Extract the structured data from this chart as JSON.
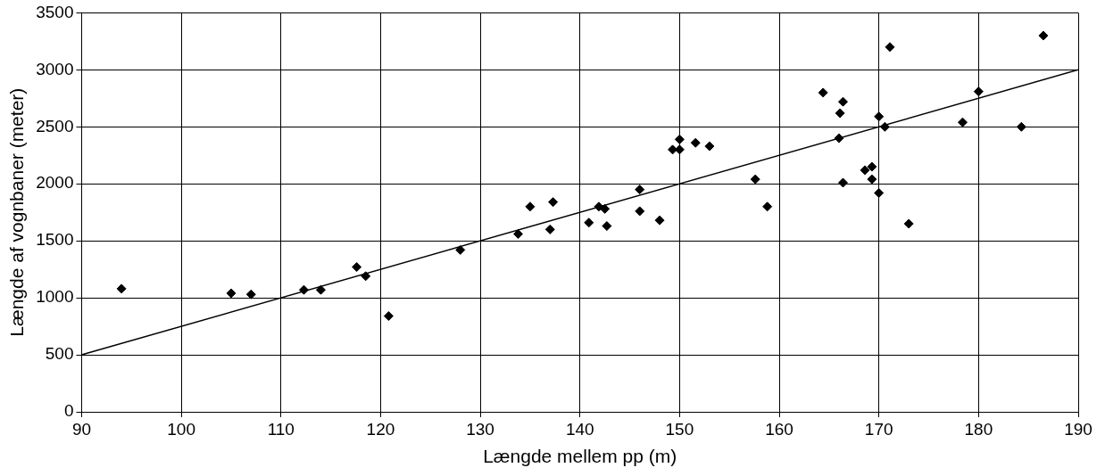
{
  "chart_data": {
    "type": "scatter",
    "xlabel": "Længde mellem pp (m)",
    "ylabel": "Længde af vognbaner (meter)",
    "xlim": [
      90,
      190
    ],
    "xticks": [
      90,
      100,
      110,
      120,
      130,
      140,
      150,
      160,
      170,
      180,
      190
    ],
    "ylim": [
      0,
      3500
    ],
    "yticks": [
      0,
      500,
      1000,
      1500,
      2000,
      2500,
      3000,
      3500
    ],
    "grid": true,
    "legend": false,
    "series": [
      {
        "marker": "diamond",
        "color": "#000000",
        "x": [
          94,
          105,
          107,
          112.3,
          114,
          117.6,
          118.5,
          120.8,
          128,
          133.8,
          135,
          137,
          137.3,
          140.9,
          141.9,
          142.5,
          142.7,
          146,
          146,
          148,
          149.3,
          150,
          150,
          151.6,
          153,
          157.6,
          158.8,
          164.4,
          166,
          166.1,
          166.4,
          166.4,
          168.6,
          169.3,
          169.3,
          170,
          170,
          170.6,
          171.1,
          173,
          178.4,
          180,
          184.3,
          186.5
        ],
        "values": [
          1080,
          1040,
          1030,
          1070,
          1070,
          1270,
          1190,
          840,
          1420,
          1560,
          1800,
          1600,
          1840,
          1660,
          1800,
          1780,
          1630,
          1950,
          1760,
          1680,
          2300,
          2390,
          2300,
          2360,
          2330,
          2040,
          1800,
          2800,
          2400,
          2620,
          2720,
          2010,
          2120,
          2150,
          2040,
          2590,
          1920,
          2500,
          3200,
          1650,
          2540,
          2810,
          2500,
          3300
        ]
      },
      {
        "type": "line",
        "marker": "none",
        "color": "#000000",
        "x": [
          90,
          190
        ],
        "values": [
          500,
          3000
        ]
      }
    ]
  }
}
